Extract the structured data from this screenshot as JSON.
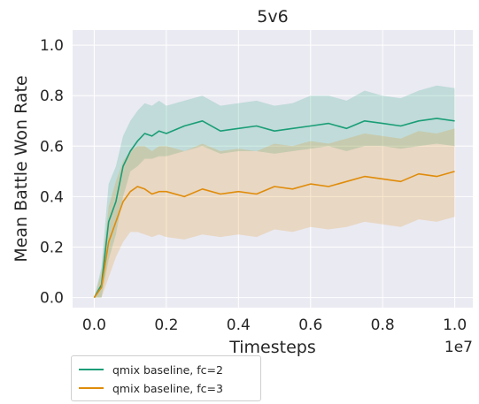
{
  "chart_data": {
    "type": "line",
    "title": "5v6",
    "xlabel": "Timesteps",
    "ylabel": "Mean Battle Won Rate",
    "x_scale_label": "1e7",
    "xlim": [
      -0.06,
      1.05
    ],
    "ylim": [
      -0.04,
      1.06
    ],
    "x_ticks": [
      0.0,
      0.2,
      0.4,
      0.6,
      0.8,
      1.0
    ],
    "x_tick_labels": [
      "0.0",
      "0.2",
      "0.4",
      "0.6",
      "0.8",
      "1.0"
    ],
    "y_ticks": [
      0.0,
      0.2,
      0.4,
      0.6,
      0.8,
      1.0
    ],
    "y_tick_labels": [
      "0.0",
      "0.2",
      "0.4",
      "0.6",
      "0.8",
      "1.0"
    ],
    "grid": true,
    "legend_position": "below-left",
    "x": [
      0.0,
      0.02,
      0.04,
      0.06,
      0.08,
      0.1,
      0.12,
      0.14,
      0.16,
      0.18,
      0.2,
      0.25,
      0.3,
      0.35,
      0.4,
      0.45,
      0.5,
      0.55,
      0.6,
      0.65,
      0.7,
      0.75,
      0.8,
      0.85,
      0.9,
      0.95,
      1.0
    ],
    "series": [
      {
        "name": "qmix baseline, fc=2",
        "color": "#1a9e77",
        "values": [
          0.0,
          0.05,
          0.3,
          0.38,
          0.52,
          0.58,
          0.62,
          0.65,
          0.64,
          0.66,
          0.65,
          0.68,
          0.7,
          0.66,
          0.67,
          0.68,
          0.66,
          0.67,
          0.68,
          0.69,
          0.67,
          0.7,
          0.69,
          0.68,
          0.7,
          0.71,
          0.7
        ],
        "band_low": [
          0.0,
          0.0,
          0.15,
          0.25,
          0.4,
          0.5,
          0.52,
          0.55,
          0.55,
          0.56,
          0.56,
          0.58,
          0.6,
          0.57,
          0.58,
          0.58,
          0.57,
          0.58,
          0.59,
          0.6,
          0.58,
          0.6,
          0.6,
          0.59,
          0.6,
          0.61,
          0.6
        ],
        "band_high": [
          0.0,
          0.12,
          0.45,
          0.52,
          0.64,
          0.7,
          0.74,
          0.77,
          0.76,
          0.78,
          0.76,
          0.78,
          0.8,
          0.76,
          0.77,
          0.78,
          0.76,
          0.77,
          0.8,
          0.8,
          0.78,
          0.82,
          0.8,
          0.79,
          0.82,
          0.84,
          0.83
        ]
      },
      {
        "name": "qmix baseline, fc=3",
        "color": "#e08c0a",
        "values": [
          0.0,
          0.04,
          0.22,
          0.3,
          0.38,
          0.42,
          0.44,
          0.43,
          0.41,
          0.42,
          0.42,
          0.4,
          0.43,
          0.41,
          0.42,
          0.41,
          0.44,
          0.43,
          0.45,
          0.44,
          0.46,
          0.48,
          0.47,
          0.46,
          0.49,
          0.48,
          0.5
        ],
        "band_low": [
          0.0,
          0.0,
          0.08,
          0.16,
          0.22,
          0.26,
          0.26,
          0.25,
          0.24,
          0.25,
          0.24,
          0.23,
          0.25,
          0.24,
          0.25,
          0.24,
          0.27,
          0.26,
          0.28,
          0.27,
          0.28,
          0.3,
          0.29,
          0.28,
          0.31,
          0.3,
          0.32
        ],
        "band_high": [
          0.0,
          0.1,
          0.36,
          0.46,
          0.54,
          0.58,
          0.6,
          0.6,
          0.58,
          0.6,
          0.6,
          0.58,
          0.61,
          0.58,
          0.59,
          0.58,
          0.61,
          0.6,
          0.62,
          0.61,
          0.63,
          0.65,
          0.64,
          0.63,
          0.66,
          0.65,
          0.67
        ]
      }
    ]
  }
}
